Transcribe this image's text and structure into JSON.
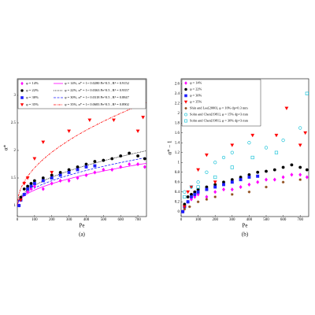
{
  "chart_data": [
    {
      "type": "scatter",
      "caption": "(a)",
      "x_label": "Pe",
      "y_label": "α*",
      "xlim": [
        0,
        750
      ],
      "ylim": [
        0.8,
        3.3
      ],
      "xticks": [
        0,
        100,
        200,
        300,
        400,
        500,
        600,
        700
      ],
      "yticks": [
        1,
        1.5,
        2,
        2.5,
        3
      ],
      "series": [
        {
          "name": "φ = 14%",
          "color": "#ff00ff",
          "marker": "diamond",
          "filled": true,
          "x": [
            10,
            20,
            40,
            60,
            80,
            100,
            150,
            200,
            250,
            300,
            350,
            400,
            450,
            500,
            550,
            600,
            650,
            700,
            740
          ],
          "values": [
            1.0,
            1.1,
            1.2,
            1.25,
            1.3,
            1.35,
            1.3,
            1.4,
            1.45,
            1.45,
            1.5,
            1.55,
            1.6,
            1.65,
            1.65,
            1.7,
            1.75,
            1.75,
            1.7
          ]
        },
        {
          "name": "φ = 22%",
          "color": "#000000",
          "marker": "circle",
          "filled": true,
          "x": [
            10,
            20,
            40,
            60,
            80,
            100,
            150,
            200,
            250,
            300,
            350,
            400,
            450,
            500,
            550,
            600,
            650,
            700,
            740
          ],
          "values": [
            1.0,
            1.15,
            1.3,
            1.35,
            1.4,
            1.45,
            1.5,
            1.55,
            1.6,
            1.65,
            1.7,
            1.75,
            1.8,
            1.82,
            1.85,
            1.9,
            1.95,
            1.9,
            1.85
          ]
        },
        {
          "name": "φ = 30%",
          "color": "#1f1fff",
          "marker": "square",
          "filled": true,
          "x": [
            10,
            20,
            40,
            60,
            80,
            100,
            150,
            200,
            250,
            300,
            350,
            400,
            450
          ],
          "values": [
            1.0,
            1.1,
            1.2,
            1.3,
            1.35,
            1.4,
            1.45,
            1.5,
            1.55,
            1.6,
            1.65,
            1.7,
            1.72
          ]
        },
        {
          "name": "φ = 35%",
          "color": "#ff0000",
          "marker": "triangle-down",
          "filled": true,
          "x": [
            20,
            40,
            60,
            100,
            150,
            200,
            300,
            420,
            560,
            620,
            700,
            730
          ],
          "values": [
            1.1,
            1.4,
            1.5,
            1.85,
            2.15,
            1.6,
            2.35,
            2.55,
            2.55,
            3.1,
            2.35,
            2.6
          ]
        }
      ],
      "fits": [
        {
          "name": "φ = 14%,  α* = 1+ 0.0280 Pe^0.5 , R² = 0.9152",
          "color": "#ff00ff",
          "dash": "none",
          "coefficient": 0.028,
          "exponent": 0.5
        },
        {
          "name": "φ = 22%,  α* = 1+ 0.0363 Pe^0.5 , R² = 0.9357",
          "color": "#000000",
          "dash": "1 1",
          "coefficient": 0.0363,
          "exponent": 0.5
        },
        {
          "name": "φ = 30%,  α* = 1+ 0.0318 Pe^0.5 , R² = 0.8847",
          "color": "#1f1fff",
          "dash": "3 1.5",
          "coefficient": 0.0318,
          "exponent": 0.5
        },
        {
          "name": "φ = 35%,  α* = 1+ 0.0683 Pe^0.5 , R² = 0.8902",
          "color": "#ff0000",
          "dash": "3 1 1 1",
          "coefficient": 0.0683,
          "exponent": 0.5
        }
      ]
    },
    {
      "type": "scatter",
      "caption": "(b)",
      "x_label": "Pe",
      "y_label": "α* − 1",
      "xlim": [
        0,
        750
      ],
      "ylim": [
        -0.1,
        2.7
      ],
      "xticks": [
        0,
        100,
        200,
        300,
        400,
        500,
        600,
        700
      ],
      "yticks": [
        0,
        0.2,
        0.4,
        0.6,
        0.8,
        1,
        1.2,
        1.4,
        1.6,
        1.8,
        2,
        2.2,
        2.4,
        2.6
      ],
      "series": [
        {
          "name": "φ = 14%",
          "color": "#ff00ff",
          "marker": "diamond",
          "filled": true,
          "x": [
            10,
            20,
            40,
            60,
            80,
            100,
            150,
            200,
            250,
            300,
            350,
            400,
            450,
            500,
            550,
            600,
            650,
            700,
            740
          ],
          "values": [
            0.0,
            0.1,
            0.2,
            0.25,
            0.3,
            0.35,
            0.3,
            0.4,
            0.45,
            0.45,
            0.5,
            0.55,
            0.6,
            0.65,
            0.65,
            0.7,
            0.75,
            0.75,
            0.7
          ]
        },
        {
          "name": "φ = 22%",
          "color": "#000000",
          "marker": "circle",
          "filled": true,
          "x": [
            10,
            20,
            40,
            60,
            80,
            100,
            150,
            200,
            250,
            300,
            350,
            400,
            450,
            500,
            550,
            600,
            650,
            700,
            740
          ],
          "values": [
            0.0,
            0.15,
            0.3,
            0.35,
            0.4,
            0.45,
            0.5,
            0.55,
            0.6,
            0.65,
            0.7,
            0.75,
            0.8,
            0.82,
            0.85,
            0.9,
            0.95,
            0.9,
            0.85
          ]
        },
        {
          "name": "φ = 30%",
          "color": "#1f1fff",
          "marker": "square",
          "filled": true,
          "x": [
            10,
            20,
            40,
            60,
            80,
            100,
            150,
            200,
            250,
            300,
            350,
            400,
            450
          ],
          "values": [
            0.0,
            0.1,
            0.2,
            0.3,
            0.35,
            0.4,
            0.45,
            0.5,
            0.55,
            0.6,
            0.65,
            0.7,
            0.72
          ]
        },
        {
          "name": "φ = 35%",
          "color": "#ff0000",
          "marker": "triangle-down",
          "filled": true,
          "x": [
            20,
            40,
            60,
            100,
            150,
            200,
            300,
            420,
            560,
            620,
            700,
            730
          ],
          "values": [
            0.1,
            0.4,
            0.5,
            0.85,
            1.15,
            0.6,
            1.35,
            1.55,
            1.55,
            2.1,
            1.35,
            1.6
          ]
        },
        {
          "name": "Shin and Lee[2000], φ = 10% dp=0.3 mm",
          "color": "#8b4513",
          "marker": "star",
          "filled": true,
          "x": [
            20,
            50,
            100,
            150,
            200,
            300,
            400,
            500,
            600,
            700
          ],
          "values": [
            0.05,
            0.1,
            0.2,
            0.25,
            0.3,
            0.35,
            0.4,
            0.5,
            0.6,
            0.65
          ]
        },
        {
          "name": "Sohn and Chen[1981], φ = 15% dp=3 mm",
          "color": "#00bcd4",
          "marker": "circle",
          "filled": false,
          "x": [
            20,
            60,
            100,
            150,
            200,
            250,
            300,
            400,
            500,
            600,
            700
          ],
          "values": [
            0.4,
            0.5,
            0.6,
            0.8,
            1.0,
            1.1,
            1.2,
            1.4,
            1.3,
            1.45,
            1.7
          ]
        },
        {
          "name": "Sohn and Chen[1981], φ = 30% dp=3 mm",
          "color": "#00bcd4",
          "marker": "square",
          "filled": false,
          "x": [
            20,
            100,
            200,
            300,
            420,
            560,
            740
          ],
          "values": [
            0.3,
            0.5,
            0.7,
            0.9,
            1.1,
            1.2,
            2.4
          ]
        }
      ]
    }
  ]
}
